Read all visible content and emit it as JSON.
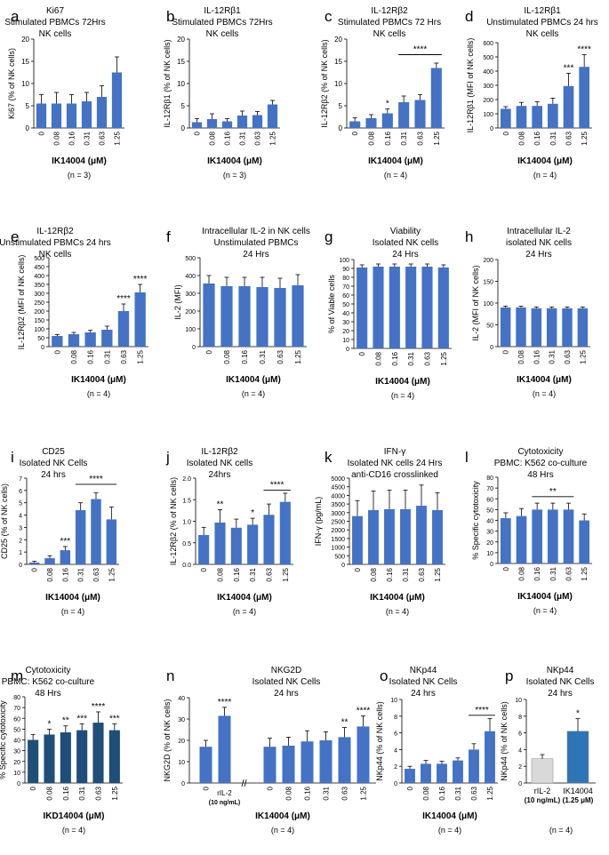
{
  "colors": {
    "bar": "#4472C4",
    "bar_dark": "#1F4E79",
    "bar_light": "#D9D9D9",
    "bar_blue": "#2E75B6",
    "axis": "#000000",
    "err": "#000000"
  },
  "chart_data": [
    {
      "id": "a",
      "type": "bar",
      "panel_letter": "a",
      "title_lines": [
        "Ki67",
        "Stimulated PBMCs 72Hrs",
        "NK cells"
      ],
      "ylabel": "Ki67  (% of NK cells)",
      "ylim": [
        0,
        20
      ],
      "yticks": [
        "0",
        "5",
        "10",
        "15",
        "20"
      ],
      "categories": [
        "0",
        "0.08",
        "0.16",
        "0.31",
        "0.63",
        "1.25"
      ],
      "values": [
        5.5,
        5.5,
        5.5,
        6,
        7,
        12.5
      ],
      "errors": [
        2,
        2.5,
        2,
        2,
        2.5,
        3.5
      ],
      "xlabel": "IK14004 (μM)",
      "n_label": "(n = 3)",
      "annotations": []
    },
    {
      "id": "b",
      "type": "bar",
      "panel_letter": "b",
      "title_lines": [
        "IL-12Rβ1",
        "Stimulated PBMCs 72Hrs",
        "NK cells"
      ],
      "ylabel": "IL-12Rβ1  (% of NK cells)",
      "ylim": [
        0,
        20
      ],
      "yticks": [
        "0",
        "5",
        "10",
        "15",
        "20"
      ],
      "categories": [
        "0",
        "0.08",
        "0.16",
        "0.31",
        "0.63",
        "1.25"
      ],
      "values": [
        1.3,
        2,
        1.5,
        2.8,
        2.9,
        5.3
      ],
      "errors": [
        0.8,
        1.2,
        0.6,
        1,
        0.8,
        0.9
      ],
      "xlabel": "IK14004 (μM)",
      "n_label": "(n = 3)",
      "annotations": []
    },
    {
      "id": "c",
      "type": "bar",
      "panel_letter": "c",
      "title_lines": [
        "IL-12Rβ2",
        "Stimulated PBMCs 72 Hrs",
        "NK cells"
      ],
      "ylabel": "IL-12Rβ2  (% of NK cells)",
      "ylim": [
        0,
        20
      ],
      "yticks": [
        "0",
        "5",
        "10",
        "15",
        "20"
      ],
      "categories": [
        "0",
        "0.08",
        "0.16",
        "0.31",
        "0.63",
        "1.25"
      ],
      "values": [
        1.5,
        2.2,
        3.3,
        5.8,
        6.3,
        13.5
      ],
      "errors": [
        0.8,
        0.8,
        1,
        1.4,
        1.2,
        1.1
      ],
      "xlabel": "IK14004 (μM)",
      "n_label": "(n = 4)",
      "annotations": [
        {
          "text": "*",
          "bar": 2
        },
        {
          "text": "****",
          "from": 3,
          "to": 5,
          "at": 16.5
        }
      ]
    },
    {
      "id": "d",
      "type": "bar",
      "panel_letter": "d",
      "title_lines": [
        "IL-12Rβ1",
        "Unstimulated PBMCs 24 hrs",
        "NK cells"
      ],
      "ylabel": "IL-12Rβ1  (MFI of NK cells)",
      "ylim": [
        0,
        600
      ],
      "yticks": [
        "0",
        "100",
        "200",
        "300",
        "400",
        "500",
        "600"
      ],
      "categories": [
        "0",
        "0.08",
        "0.16",
        "0.31",
        "0.63",
        "1.25"
      ],
      "values": [
        135,
        155,
        155,
        170,
        295,
        430
      ],
      "errors": [
        15,
        25,
        30,
        40,
        90,
        85
      ],
      "xlabel": "IK14004 (μM)",
      "n_label": "(n = 4)",
      "annotations": [
        {
          "text": "***",
          "bar": 4
        },
        {
          "text": "****",
          "bar": 5
        }
      ]
    },
    {
      "id": "e",
      "type": "bar",
      "panel_letter": "e",
      "title_lines": [
        "IL-12Rβ2",
        "Unstimulated PBMCs 24 hrs",
        "NK cells"
      ],
      "ylabel": "IL-12Rβ2  (MFI of NK cells)",
      "ylim": [
        0,
        500
      ],
      "yticks": [
        "0",
        "50",
        "100",
        "150",
        "200",
        "250",
        "300",
        "350",
        "400",
        "450",
        "500"
      ],
      "categories": [
        "0",
        "0.08",
        "0.16",
        "0.31",
        "0.63",
        "1.25"
      ],
      "values": [
        60,
        70,
        80,
        95,
        200,
        305
      ],
      "errors": [
        8,
        10,
        12,
        20,
        40,
        45
      ],
      "xlabel": "IK14004 (μM)",
      "n_label": "(n = 4)",
      "annotations": [
        {
          "text": "****",
          "bar": 4
        },
        {
          "text": "****",
          "bar": 5
        }
      ]
    },
    {
      "id": "f",
      "type": "bar",
      "panel_letter": "f",
      "title_lines": [
        "Intracellular IL-2 in NK cells",
        "Unstimulated PBMCs",
        "24 Hrs"
      ],
      "ylabel": "IL-2  (MFI)",
      "ylim": [
        0,
        500
      ],
      "yticks": [
        "0",
        "100",
        "200",
        "300",
        "400",
        "500"
      ],
      "categories": [
        "0",
        "0.08",
        "0.16",
        "0.31",
        "0.63",
        "1.25"
      ],
      "values": [
        355,
        340,
        340,
        335,
        330,
        345
      ],
      "errors": [
        45,
        50,
        50,
        55,
        55,
        60
      ],
      "xlabel": "IK14004 (μM)",
      "n_label": "(n = 4)",
      "annotations": []
    },
    {
      "id": "g",
      "type": "bar",
      "panel_letter": "g",
      "title_lines": [
        "Viability",
        "Isolated NK cells",
        "24 Hrs"
      ],
      "ylabel": "% of Viable cells",
      "ylim": [
        0,
        100
      ],
      "yticks": [
        "0",
        "10",
        "20",
        "30",
        "40",
        "50",
        "60",
        "70",
        "80",
        "90",
        "100"
      ],
      "categories": [
        "0",
        "0.08",
        "0.16",
        "0.31",
        "0.63",
        "1.25"
      ],
      "values": [
        91,
        92,
        92,
        92,
        92,
        91
      ],
      "errors": [
        3,
        3,
        3,
        3,
        3,
        3
      ],
      "xlabel": "IK14004 (μM)",
      "n_label": "(n = 4)",
      "annotations": []
    },
    {
      "id": "h",
      "type": "bar",
      "panel_letter": "h",
      "title_lines": [
        "Intracellular IL-2",
        "isolated NK cells",
        "24 Hrs"
      ],
      "ylabel": "IL-2  (MFI of NK cells)",
      "ylim": [
        0,
        200
      ],
      "yticks": [
        "0",
        "50",
        "100",
        "150",
        "200"
      ],
      "categories": [
        "0",
        "0.08",
        "0.16",
        "0.31",
        "0.63",
        "1.25"
      ],
      "values": [
        90,
        90,
        88,
        88,
        88,
        88
      ],
      "errors": [
        3,
        3,
        3,
        3,
        3,
        3
      ],
      "xlabel": "IK14004 (μM)",
      "n_label": "(n = 4)",
      "annotations": []
    },
    {
      "id": "i",
      "type": "bar",
      "panel_letter": "i",
      "title_lines": [
        "CD25",
        "Isolated NK Cells",
        "24 hrs"
      ],
      "ylabel": "CD25   (% of NK cells)",
      "ylim": [
        0,
        7
      ],
      "yticks": [
        "0",
        "1",
        "2",
        "3",
        "4",
        "5",
        "6",
        "7"
      ],
      "categories": [
        "0",
        "0.08",
        "0.16",
        "0.31",
        "0.63",
        "1.25"
      ],
      "values": [
        0.15,
        0.5,
        1.15,
        4.4,
        5.3,
        3.65
      ],
      "errors": [
        0.1,
        0.2,
        0.3,
        0.6,
        0.5,
        1
      ],
      "xlabel": "IK14004 (μM)",
      "n_label": "(n = 4)",
      "annotations": [
        {
          "text": "***",
          "bar": 2
        },
        {
          "text": "****",
          "from": 3,
          "to": 5,
          "at": 6.5
        }
      ]
    },
    {
      "id": "j",
      "type": "bar",
      "panel_letter": "j",
      "title_lines": [
        "IL-12Rβ2",
        "Isolated NK cells",
        "24hrs"
      ],
      "ylabel": "IL-12Rβ2   (% of NK cells)",
      "ylim": [
        0,
        2
      ],
      "yticks": [
        "0.0",
        "0.5",
        "1.0",
        "1.5",
        "2.0"
      ],
      "categories": [
        "0",
        "0.08",
        "0.16",
        "0.31",
        "0.63",
        "1.25"
      ],
      "values": [
        0.68,
        0.97,
        0.85,
        0.92,
        1.15,
        1.45
      ],
      "errors": [
        0.18,
        0.3,
        0.2,
        0.15,
        0.25,
        0.2
      ],
      "xlabel": "IK14004 (μM)",
      "n_label": "(n = 4)",
      "annotations": [
        {
          "text": "**",
          "bar": 1
        },
        {
          "text": "*",
          "bar": 3
        },
        {
          "text": "****",
          "from": 4,
          "to": 5,
          "at": 1.72
        }
      ]
    },
    {
      "id": "k",
      "type": "bar",
      "panel_letter": "k",
      "title_lines": [
        "IFN-γ",
        "Isolated NK cells  24 Hrs",
        "anti-CD16 crosslinked"
      ],
      "ylabel": "IFN-γ   (pg/mL)",
      "ylim": [
        0,
        5000
      ],
      "yticks": [
        "0",
        "500",
        "1000",
        "1500",
        "2000",
        "2500",
        "3000",
        "3500",
        "4000",
        "4500",
        "5000"
      ],
      "categories": [
        "0",
        "0.08",
        "0.16",
        "0.31",
        "0.63",
        "1.25"
      ],
      "values": [
        2800,
        3150,
        3200,
        3200,
        3400,
        3150
      ],
      "errors": [
        900,
        1100,
        1100,
        1100,
        1200,
        1000
      ],
      "xlabel": "IK14004 (μM)",
      "n_label": "(n = 4)",
      "annotations": []
    },
    {
      "id": "l",
      "type": "bar",
      "panel_letter": "l",
      "title_lines": [
        "Cytotoxicity",
        "PBMC: K562 co-culture",
        "48 Hrs"
      ],
      "ylabel": "% Specific cytotoxicity",
      "ylim": [
        0,
        80
      ],
      "yticks": [
        "0",
        "10",
        "20",
        "30",
        "40",
        "50",
        "60",
        "70",
        "80"
      ],
      "categories": [
        "0",
        "0.08",
        "0.16",
        "0.31",
        "0.63",
        "1.25"
      ],
      "values": [
        42,
        44,
        50,
        50,
        50,
        40
      ],
      "errors": [
        5,
        7,
        6,
        6,
        6,
        6
      ],
      "xlabel": "IK14004 (μM)",
      "n_label": "(n = 4)",
      "annotations": [
        {
          "text": "**",
          "from": 2,
          "to": 4,
          "at": 62
        }
      ]
    },
    {
      "id": "m",
      "type": "bar",
      "panel_letter": "m",
      "bar_color": "bar_dark",
      "title_lines": [
        "Cytotoxicity",
        "PBMC: K562 co-culture",
        "48 Hrs"
      ],
      "ylabel": "% Specific cytotoxicity",
      "ylim": [
        0,
        80
      ],
      "yticks": [
        "0",
        "10",
        "20",
        "30",
        "40",
        "50",
        "60",
        "70",
        "80"
      ],
      "categories": [
        "0",
        "0.08",
        "0.16",
        "0.31",
        "0.63",
        "1.25"
      ],
      "values": [
        40,
        45,
        47,
        49,
        56,
        49
      ],
      "errors": [
        5,
        5,
        6,
        6,
        10,
        6
      ],
      "xlabel": "IKD14004 (μM)",
      "n_label": "(n = 4)",
      "annotations": [
        {
          "text": "*",
          "bar": 1
        },
        {
          "text": "**",
          "bar": 2
        },
        {
          "text": "***",
          "bar": 3
        },
        {
          "text": "****",
          "bar": 4
        },
        {
          "text": "***",
          "bar": 5
        }
      ]
    },
    {
      "id": "n",
      "type": "bar",
      "panel_letter": "n",
      "title_lines": [
        "NKG2D",
        "Isolated NK Cells",
        "24 hrs"
      ],
      "ylabel": "NKG2D   (% of NK cells)",
      "ylim": [
        0,
        40
      ],
      "yticks": [
        "0",
        "10",
        "20",
        "30",
        "40"
      ],
      "categories": [
        "0",
        "rIL-2",
        "0",
        "0.08",
        "0.16",
        "0.31",
        "0.63",
        "1.25"
      ],
      "sub_label": "(10 ng/mL)",
      "values": [
        17,
        31.5,
        17,
        17.5,
        19.5,
        20,
        21.5,
        26.5
      ],
      "errors": [
        3,
        4,
        4,
        4,
        5,
        4,
        4.5,
        5
      ],
      "axis_break": "//",
      "xlabel": "IK14004 (μM)",
      "n_label": "(n = 4)",
      "annotations": [
        {
          "text": "****",
          "bar": 1
        },
        {
          "text": "**",
          "bar": 6
        },
        {
          "text": "****",
          "bar": 7
        }
      ]
    },
    {
      "id": "o",
      "type": "bar",
      "panel_letter": "o",
      "title_lines": [
        "NKp44",
        "Isolated NK Cells",
        "24 hrs"
      ],
      "ylabel": "NKp44   (% of NK cells)",
      "ylim": [
        0,
        10
      ],
      "yticks": [
        "0",
        "2",
        "4",
        "6",
        "8",
        "10"
      ],
      "categories": [
        "0",
        "0.08",
        "0.16",
        "0.31",
        "0.63",
        "1.25"
      ],
      "values": [
        1.7,
        2.3,
        2.3,
        2.7,
        4,
        6.2
      ],
      "errors": [
        0.3,
        0.4,
        0.3,
        0.3,
        0.7,
        1.5
      ],
      "xlabel": "IK14004 (μM)",
      "n_label": "(n = 4)",
      "annotations": [
        {
          "text": "****",
          "from": 4,
          "to": 5,
          "at": 8.1
        }
      ]
    },
    {
      "id": "p",
      "type": "bar",
      "panel_letter": "p",
      "title_lines": [
        "NKp44",
        "Isolated NK Cells",
        "24 hrs"
      ],
      "ylabel": "NKp44   (% of NK cells)",
      "ylim": [
        0,
        10
      ],
      "yticks": [
        "0",
        "2",
        "4",
        "6",
        "8",
        "10"
      ],
      "categories": [
        "rIL-2",
        "IK14004"
      ],
      "sub_labels": [
        "(10 ng/mL)",
        "(1.25 μM)"
      ],
      "values": [
        2.9,
        6.2
      ],
      "errors": [
        0.5,
        1.5
      ],
      "xlabel": "",
      "n_label": "(n = 4)",
      "annotations": [
        {
          "text": "*",
          "bar": 1
        }
      ]
    }
  ]
}
